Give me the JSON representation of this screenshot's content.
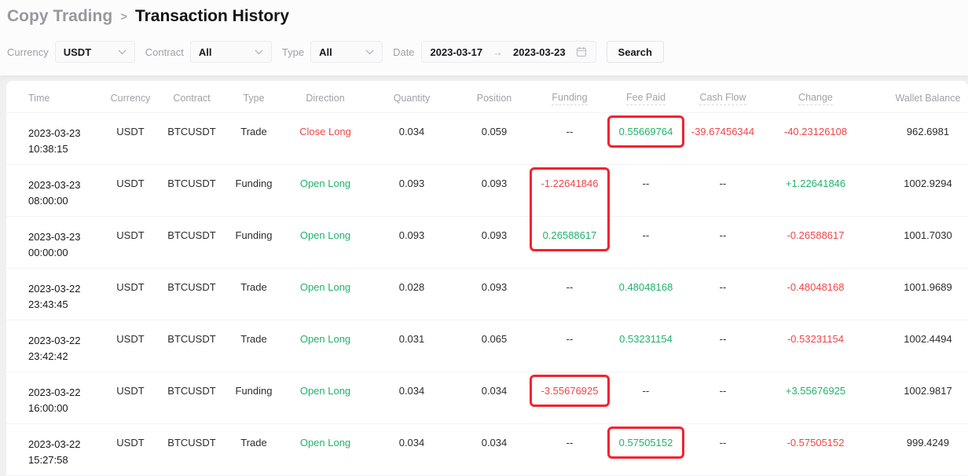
{
  "breadcrumb": {
    "parent": "Copy Trading",
    "separator": ">",
    "current": "Transaction History"
  },
  "filters": {
    "currency": {
      "label": "Currency",
      "value": "USDT"
    },
    "contract": {
      "label": "Contract",
      "value": "All"
    },
    "type": {
      "label": "Type",
      "value": "All"
    },
    "date": {
      "label": "Date",
      "start": "2023-03-17",
      "arrow": "→",
      "end": "2023-03-23"
    },
    "search_label": "Search"
  },
  "table": {
    "columns": [
      {
        "key": "time",
        "label": "Time",
        "hint": false
      },
      {
        "key": "currency",
        "label": "Currency",
        "hint": false
      },
      {
        "key": "contract",
        "label": "Contract",
        "hint": false
      },
      {
        "key": "type",
        "label": "Type",
        "hint": false
      },
      {
        "key": "direction",
        "label": "Direction",
        "hint": false
      },
      {
        "key": "quantity",
        "label": "Quantity",
        "hint": false
      },
      {
        "key": "position",
        "label": "Position",
        "hint": false
      },
      {
        "key": "funding",
        "label": "Funding",
        "hint": true
      },
      {
        "key": "fee_paid",
        "label": "Fee Paid",
        "hint": true
      },
      {
        "key": "cash_flow",
        "label": "Cash Flow",
        "hint": true
      },
      {
        "key": "change",
        "label": "Change",
        "hint": true
      },
      {
        "key": "wallet_balance",
        "label": "Wallet Balance",
        "hint": false
      }
    ],
    "empty_value": "--",
    "rows": [
      {
        "date": "2023-03-23",
        "time": "10:38:15",
        "currency": "USDT",
        "contract": "BTCUSDT",
        "type": "Trade",
        "direction": "Close Long",
        "quantity": "0.034",
        "position": "0.059",
        "funding": "--",
        "fee_paid": "0.55669764",
        "cash_flow": "-39.67456344",
        "change": "-40.23126108",
        "wallet_balance": "962.6981"
      },
      {
        "date": "2023-03-23",
        "time": "08:00:00",
        "currency": "USDT",
        "contract": "BTCUSDT",
        "type": "Funding",
        "direction": "Open Long",
        "quantity": "0.093",
        "position": "0.093",
        "funding": "-1.22641846",
        "fee_paid": "--",
        "cash_flow": "--",
        "change": "+1.22641846",
        "wallet_balance": "1002.9294"
      },
      {
        "date": "2023-03-23",
        "time": "00:00:00",
        "currency": "USDT",
        "contract": "BTCUSDT",
        "type": "Funding",
        "direction": "Open Long",
        "quantity": "0.093",
        "position": "0.093",
        "funding": "0.26588617",
        "fee_paid": "--",
        "cash_flow": "--",
        "change": "-0.26588617",
        "wallet_balance": "1001.7030"
      },
      {
        "date": "2023-03-22",
        "time": "23:43:45",
        "currency": "USDT",
        "contract": "BTCUSDT",
        "type": "Trade",
        "direction": "Open Long",
        "quantity": "0.028",
        "position": "0.093",
        "funding": "--",
        "fee_paid": "0.48048168",
        "cash_flow": "--",
        "change": "-0.48048168",
        "wallet_balance": "1001.9689"
      },
      {
        "date": "2023-03-22",
        "time": "23:42:42",
        "currency": "USDT",
        "contract": "BTCUSDT",
        "type": "Trade",
        "direction": "Open Long",
        "quantity": "0.031",
        "position": "0.065",
        "funding": "--",
        "fee_paid": "0.53231154",
        "cash_flow": "--",
        "change": "-0.53231154",
        "wallet_balance": "1002.4494"
      },
      {
        "date": "2023-03-22",
        "time": "16:00:00",
        "currency": "USDT",
        "contract": "BTCUSDT",
        "type": "Funding",
        "direction": "Open Long",
        "quantity": "0.034",
        "position": "0.034",
        "funding": "-3.55676925",
        "fee_paid": "--",
        "cash_flow": "--",
        "change": "+3.55676925",
        "wallet_balance": "1002.9817"
      },
      {
        "date": "2023-03-22",
        "time": "15:27:58",
        "currency": "USDT",
        "contract": "BTCUSDT",
        "type": "Trade",
        "direction": "Open Long",
        "quantity": "0.034",
        "position": "0.034",
        "funding": "--",
        "fee_paid": "0.57505152",
        "cash_flow": "--",
        "change": "-0.57505152",
        "wallet_balance": "999.4249"
      }
    ]
  },
  "annotations": [
    {
      "column": "fee_paid",
      "rows": [
        0
      ]
    },
    {
      "column": "funding",
      "rows": [
        1,
        2
      ]
    },
    {
      "column": "funding",
      "rows": [
        5
      ]
    },
    {
      "column": "fee_paid",
      "rows": [
        6
      ]
    }
  ],
  "colors": {
    "positive": "#20b26c",
    "negative": "#ef454a",
    "annotation_box": "#f5222d"
  }
}
